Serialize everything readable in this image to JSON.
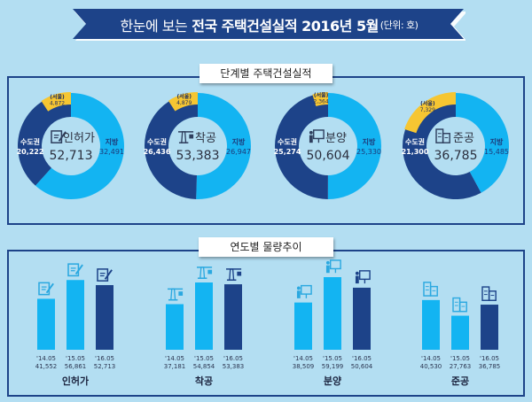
{
  "title": {
    "prefix": "한눈에 보는",
    "main": "전국 주택건설실적 2016년 5월",
    "unit": "(단위: 호)"
  },
  "colors": {
    "background": "#b3def2",
    "banner": "#1d4389",
    "capital_region": "#1d4389",
    "provinces": "#13b4f2",
    "seoul": "#f6c632",
    "bar_past": "#13b4f2",
    "bar_current": "#1d4389",
    "center_circle": "#b3def2"
  },
  "sections": {
    "stage": "단계별 주택건설실적",
    "trend": "연도별 물량추이"
  },
  "chart_data": [
    {
      "type": "pie",
      "title": "단계별 주택건설실적",
      "donuts": [
        {
          "label": "인허가",
          "icon": "document-pen-icon",
          "total": "52,713",
          "capital_label": "수도권",
          "capital": 20222,
          "capital_text": "20,222",
          "seoul_label": "(서울)",
          "seoul": 4872,
          "seoul_text": "4,872",
          "province_label": "지방",
          "province": 32491,
          "province_text": "32,491"
        },
        {
          "label": "착공",
          "icon": "crane-icon",
          "total": "53,383",
          "capital_label": "수도권",
          "capital": 26436,
          "capital_text": "26,436",
          "seoul_label": "(서울)",
          "seoul": 4879,
          "seoul_text": "4,879",
          "province_label": "지방",
          "province": 26947,
          "province_text": "26,947"
        },
        {
          "label": "분양",
          "icon": "presentation-icon",
          "total": "50,604",
          "capital_label": "수도권",
          "capital": 25274,
          "capital_text": "25,274",
          "seoul_label": "(서울)",
          "seoul": 2364,
          "seoul_text": "2,364",
          "province_label": "지방",
          "province": 25330,
          "province_text": "25,330"
        },
        {
          "label": "준공",
          "icon": "building-icon",
          "total": "36,785",
          "capital_label": "수도권",
          "capital": 21300,
          "capital_text": "21,300",
          "seoul_label": "(서울)",
          "seoul": 7329,
          "seoul_text": "7,329",
          "province_label": "지방",
          "province": 15485,
          "province_text": "15,485"
        }
      ]
    },
    {
      "type": "bar",
      "title": "연도별 물량추이",
      "categories": [
        "'14.05",
        "'15.05",
        "'16.05"
      ],
      "groups": [
        {
          "label": "인허가",
          "icon": "document-pen-icon",
          "values": [
            41552,
            56861,
            52713
          ],
          "value_texts": [
            "41,552",
            "56,861",
            "52,713"
          ]
        },
        {
          "label": "착공",
          "icon": "crane-icon",
          "values": [
            37181,
            54854,
            53383
          ],
          "value_texts": [
            "37,181",
            "54,854",
            "53,383"
          ]
        },
        {
          "label": "분양",
          "icon": "presentation-icon",
          "values": [
            38509,
            59199,
            50604
          ],
          "value_texts": [
            "38,509",
            "59,199",
            "50,604"
          ]
        },
        {
          "label": "준공",
          "icon": "building-icon",
          "values": [
            40530,
            27763,
            36785
          ],
          "value_texts": [
            "40,530",
            "27,763",
            "36,785"
          ]
        }
      ],
      "ylim": [
        0,
        60000
      ],
      "grid": false
    }
  ]
}
